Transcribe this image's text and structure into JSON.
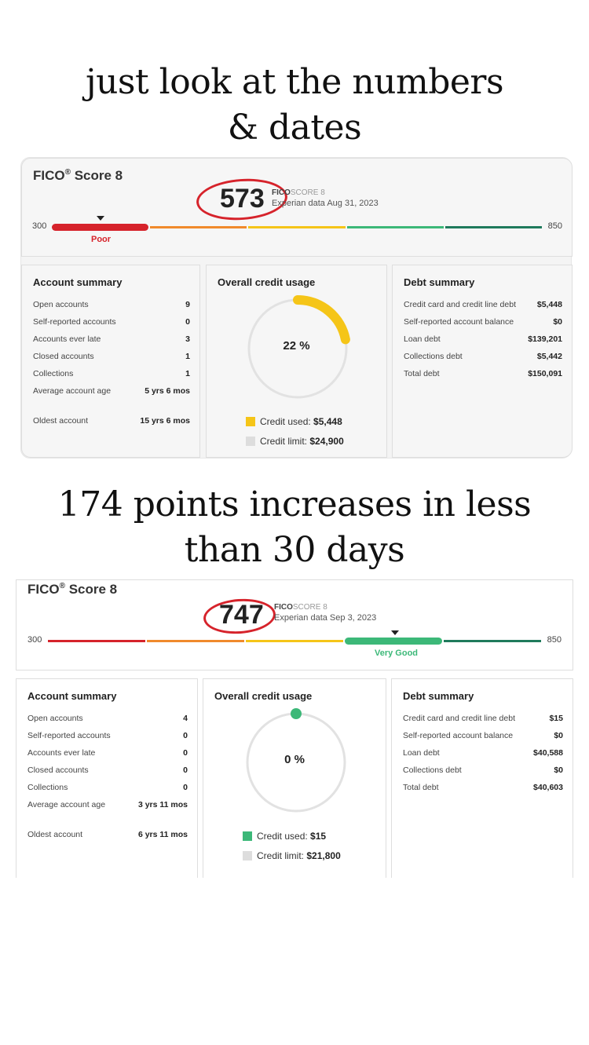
{
  "captions": {
    "top": [
      "just look at the numbers",
      "& dates"
    ],
    "middle": [
      "174 points increases in less",
      "than 30 days"
    ]
  },
  "colors": {
    "poor": "#d6232b",
    "fair": "#f08a2c",
    "good": "#f5c518",
    "very_good": "#3cb878",
    "exceptional": "#1f7a5c",
    "ring": "#e2e2e2",
    "usage_before": "#f5c518",
    "usage_after": "#3cb878",
    "limit": "#dddddd"
  },
  "before": {
    "title": "FICO",
    "title_reg": "®",
    "title_suffix": " Score 8",
    "score": "573",
    "brand": "FICO",
    "brand_suffix": "SCORE 8",
    "source": "Experian data Aug 31, 2023",
    "scale_min": "300",
    "scale_max": "850",
    "rating": "Poor",
    "active_band": 0,
    "account_summary": {
      "title": "Account summary",
      "rows": [
        {
          "label": "Open accounts",
          "value": "9"
        },
        {
          "label": "Self-reported accounts",
          "value": "0"
        },
        {
          "label": "Accounts ever late",
          "value": "3"
        },
        {
          "label": "Closed accounts",
          "value": "1"
        },
        {
          "label": "Collections",
          "value": "1"
        },
        {
          "label": "Average account age",
          "value": "5 yrs 6 mos"
        },
        {
          "label": "Oldest account",
          "value": "15 yrs 6 mos"
        }
      ]
    },
    "credit_usage": {
      "title": "Overall credit usage",
      "percent": "22 %",
      "fraction": 0.22,
      "used_label": "Credit used:",
      "used_value": "$5,448",
      "limit_label": "Credit limit:",
      "limit_value": "$24,900"
    },
    "debt_summary": {
      "title": "Debt summary",
      "rows": [
        {
          "label": "Credit card and credit line debt",
          "value": "$5,448"
        },
        {
          "label": "Self-reported account balance",
          "value": "$0"
        },
        {
          "label": "Loan debt",
          "value": "$139,201"
        },
        {
          "label": "Collections debt",
          "value": "$5,442"
        },
        {
          "label": "Total debt",
          "value": "$150,091"
        }
      ]
    }
  },
  "after": {
    "title": "FICO",
    "title_reg": "®",
    "title_suffix": " Score 8",
    "score": "747",
    "brand": "FICO",
    "brand_suffix": "SCORE 8",
    "source": "Experian data Sep 3, 2023",
    "scale_min": "300",
    "scale_max": "850",
    "rating": "Very Good",
    "active_band": 3,
    "account_summary": {
      "title": "Account summary",
      "rows": [
        {
          "label": "Open accounts",
          "value": "4"
        },
        {
          "label": "Self-reported accounts",
          "value": "0"
        },
        {
          "label": "Accounts ever late",
          "value": "0"
        },
        {
          "label": "Closed accounts",
          "value": "0"
        },
        {
          "label": "Collections",
          "value": "0"
        },
        {
          "label": "Average account age",
          "value": "3 yrs 11 mos"
        },
        {
          "label": "Oldest account",
          "value": "6 yrs 11 mos"
        }
      ]
    },
    "credit_usage": {
      "title": "Overall credit usage",
      "percent": "0 %",
      "fraction": 0,
      "used_label": "Credit used:",
      "used_value": "$15",
      "limit_label": "Credit limit:",
      "limit_value": "$21,800"
    },
    "debt_summary": {
      "title": "Debt summary",
      "rows": [
        {
          "label": "Credit card and credit line debt",
          "value": "$15"
        },
        {
          "label": "Self-reported account balance",
          "value": "$0"
        },
        {
          "label": "Loan debt",
          "value": "$40,588"
        },
        {
          "label": "Collections debt",
          "value": "$0"
        },
        {
          "label": "Total debt",
          "value": "$40,603"
        }
      ]
    }
  }
}
